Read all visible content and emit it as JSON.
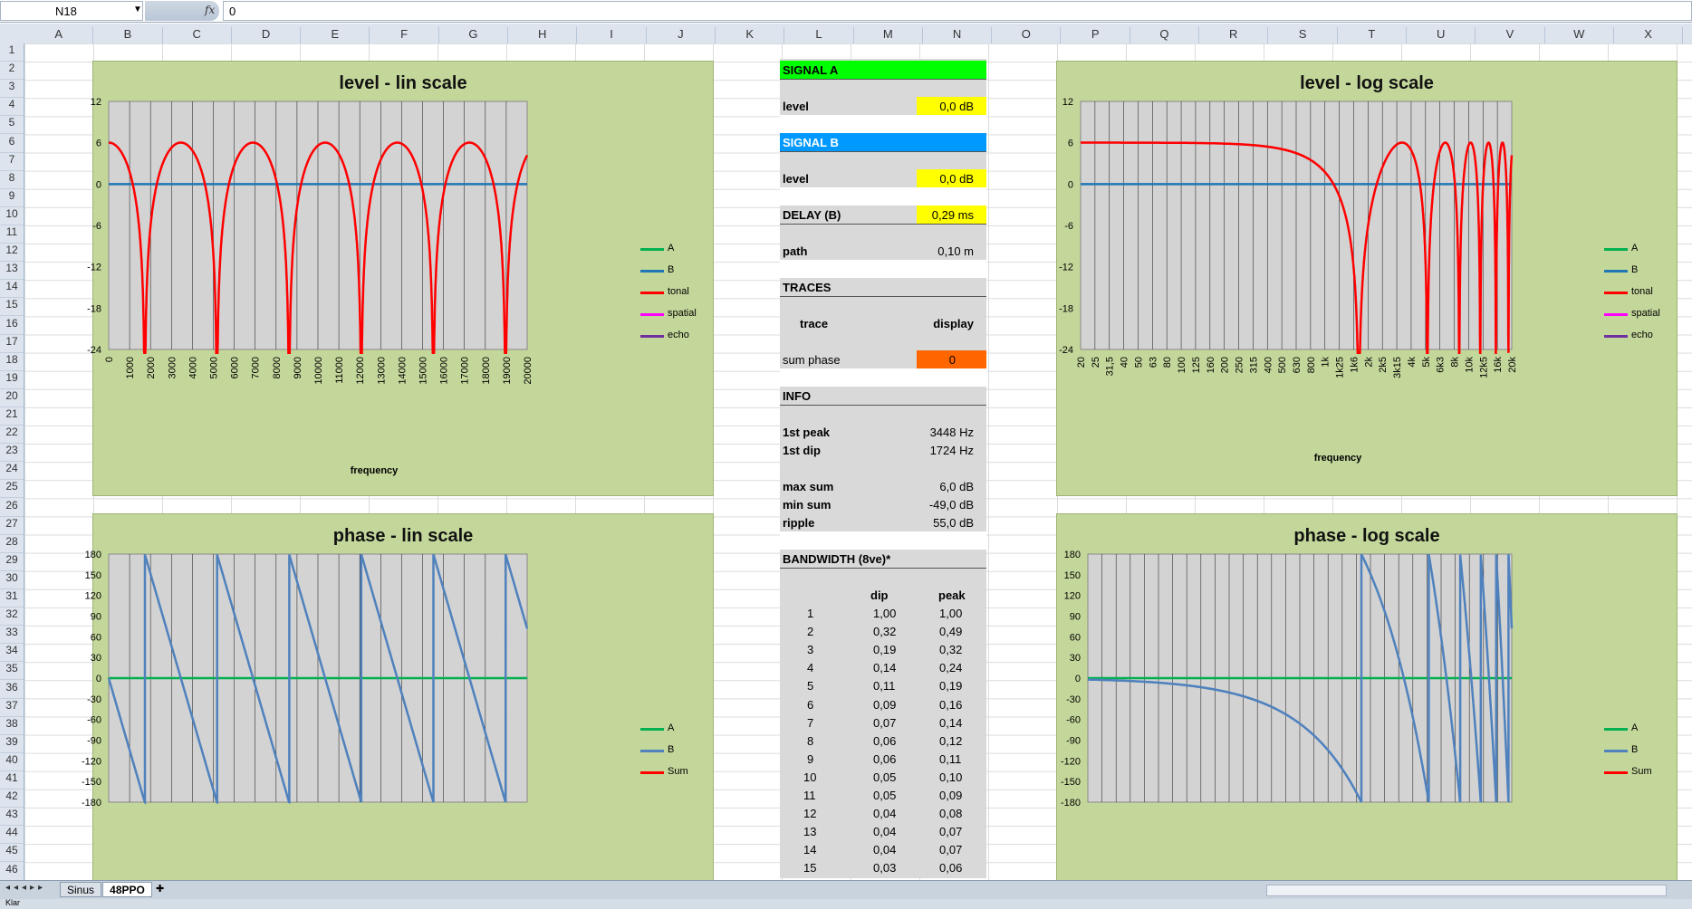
{
  "formula_bar": {
    "name_box": "N18",
    "fx": "fx",
    "formula": "0"
  },
  "columns": [
    "A",
    "B",
    "C",
    "D",
    "E",
    "F",
    "G",
    "H",
    "I",
    "J",
    "K",
    "L",
    "M",
    "N",
    "O",
    "P",
    "Q",
    "R",
    "S",
    "T",
    "U",
    "V",
    "W",
    "X"
  ],
  "rows": [
    "1",
    "2",
    "3",
    "4",
    "5",
    "6",
    "7",
    "8",
    "9",
    "10",
    "11",
    "12",
    "13",
    "14",
    "15",
    "16",
    "17",
    "18",
    "19",
    "20",
    "21",
    "22",
    "23",
    "24",
    "25",
    "26",
    "27",
    "28",
    "29",
    "30",
    "31",
    "32",
    "33",
    "34",
    "35",
    "36",
    "37",
    "38",
    "39",
    "40",
    "41",
    "42",
    "43",
    "44",
    "45",
    "46"
  ],
  "charts": {
    "level_lin": {
      "title": "level - lin scale",
      "xlabel": "frequency",
      "y_ticks": [
        "12",
        "6",
        "0",
        "-6",
        "-12",
        "-18",
        "-24"
      ],
      "x_ticks": [
        "0",
        "1000",
        "2000",
        "3000",
        "4000",
        "5000",
        "6000",
        "7000",
        "8000",
        "9000",
        "10000",
        "11000",
        "12000",
        "13000",
        "14000",
        "15000",
        "16000",
        "17000",
        "18000",
        "19000",
        "20000"
      ],
      "legend": [
        "A",
        "B",
        "tonal",
        "spatial",
        "echo"
      ]
    },
    "level_log": {
      "title": "level - log scale",
      "xlabel": "frequency",
      "y_ticks": [
        "12",
        "6",
        "0",
        "-6",
        "-12",
        "-18",
        "-24"
      ],
      "x_ticks": [
        "20",
        "25",
        "31,5",
        "40",
        "50",
        "63",
        "80",
        "100",
        "125",
        "160",
        "200",
        "250",
        "315",
        "400",
        "500",
        "630",
        "800",
        "1k",
        "1k25",
        "1k6",
        "2k",
        "2k5",
        "3k15",
        "4k",
        "5k",
        "6k3",
        "8k",
        "10k",
        "12k5",
        "16k",
        "20k"
      ],
      "legend": [
        "A",
        "B",
        "tonal",
        "spatial",
        "echo"
      ]
    },
    "phase_lin": {
      "title": "phase - lin scale",
      "y_ticks": [
        "180",
        "150",
        "120",
        "90",
        "60",
        "30",
        "0",
        "-30",
        "-60",
        "-90",
        "-120",
        "-150",
        "-180"
      ],
      "legend": [
        "A",
        "B",
        "Sum"
      ]
    },
    "phase_log": {
      "title": "phase - log scale",
      "y_ticks": [
        "180",
        "150",
        "120",
        "90",
        "60",
        "30",
        "0",
        "-30",
        "-60",
        "-90",
        "-120",
        "-150",
        "-180"
      ],
      "legend": [
        "A",
        "B",
        "Sum"
      ]
    }
  },
  "chart_data": [
    {
      "type": "line",
      "title": "level - lin scale",
      "xlabel": "frequency",
      "ylabel": "",
      "xlim": [
        0,
        20000
      ],
      "ylim": [
        -24,
        12
      ],
      "series": [
        {
          "name": "A",
          "color": "#00b050"
        },
        {
          "name": "B",
          "color": "#1f77b4",
          "values_constant": 0
        },
        {
          "name": "tonal",
          "color": "#ff0000",
          "delay_ms": 0.29
        }
      ]
    },
    {
      "type": "line",
      "title": "level - log scale",
      "xlabel": "frequency",
      "ylabel": "",
      "xlim": [
        20,
        20000
      ],
      "xscale": "log",
      "ylim": [
        -24,
        12
      ],
      "series": [
        {
          "name": "A",
          "color": "#00b050"
        },
        {
          "name": "B",
          "color": "#1f77b4",
          "values_constant": 0
        },
        {
          "name": "tonal",
          "color": "#ff0000",
          "delay_ms": 0.29
        }
      ]
    },
    {
      "type": "line",
      "title": "phase - lin scale",
      "xlim": [
        0,
        20000
      ],
      "ylim": [
        -180,
        180
      ],
      "series": [
        {
          "name": "A",
          "color": "#00b050",
          "values_constant": 0
        },
        {
          "name": "B",
          "color": "#4f81bd"
        },
        {
          "name": "Sum",
          "color": "#ff0000"
        }
      ]
    },
    {
      "type": "line",
      "title": "phase - log scale",
      "xlim": [
        20,
        20000
      ],
      "xscale": "log",
      "ylim": [
        -180,
        180
      ],
      "series": [
        {
          "name": "A",
          "color": "#00b050",
          "values_constant": 0
        },
        {
          "name": "B",
          "color": "#4f81bd"
        },
        {
          "name": "Sum",
          "color": "#ff0000"
        }
      ]
    }
  ],
  "panel": {
    "signal_a": "SIGNAL A",
    "signal_a_color": "#00ff00",
    "level_a_label": "level",
    "level_a_value": "0,0 dB",
    "signal_b": "SIGNAL B",
    "signal_b_color": "#0099ff",
    "level_b_label": "level",
    "level_b_value": "0,0 dB",
    "delay_label": "DELAY (B)",
    "delay_value": "0,29 ms",
    "path_label": "path",
    "path_value": "0,10 m",
    "traces": "TRACES",
    "trace_col": "trace",
    "display_col": "display",
    "sum_phase_label": "sum phase",
    "sum_phase_value": "0",
    "info": "INFO",
    "first_peak_label": "1st peak",
    "first_peak_value": "3448 Hz",
    "first_dip_label": "1st dip",
    "first_dip_value": "1724 Hz",
    "max_sum_label": "max sum",
    "max_sum_value": "6,0 dB",
    "min_sum_label": "min sum",
    "min_sum_value": "-49,0 dB",
    "ripple_label": "ripple",
    "ripple_value": "55,0 dB",
    "bandwidth": "BANDWIDTH (8ve)*",
    "bw_dip_col": "dip",
    "bw_peak_col": "peak",
    "bw_rows": [
      [
        "1",
        "1,00",
        "1,00"
      ],
      [
        "2",
        "0,32",
        "0,49"
      ],
      [
        "3",
        "0,19",
        "0,32"
      ],
      [
        "4",
        "0,14",
        "0,24"
      ],
      [
        "5",
        "0,11",
        "0,19"
      ],
      [
        "6",
        "0,09",
        "0,16"
      ],
      [
        "7",
        "0,07",
        "0,14"
      ],
      [
        "8",
        "0,06",
        "0,12"
      ],
      [
        "9",
        "0,06",
        "0,11"
      ],
      [
        "10",
        "0,05",
        "0,10"
      ],
      [
        "11",
        "0,05",
        "0,09"
      ],
      [
        "12",
        "0,04",
        "0,08"
      ],
      [
        "13",
        "0,04",
        "0,07"
      ],
      [
        "14",
        "0,04",
        "0,07"
      ],
      [
        "15",
        "0,03",
        "0,06"
      ]
    ]
  },
  "tabs": {
    "sheet1": "Sinus",
    "sheet2": "48PPO"
  },
  "status": "Klar",
  "colors": {
    "chart_bg": "#c4d79b",
    "highlight_yellow": "#ffff00",
    "highlight_orange": "#ff6600"
  }
}
